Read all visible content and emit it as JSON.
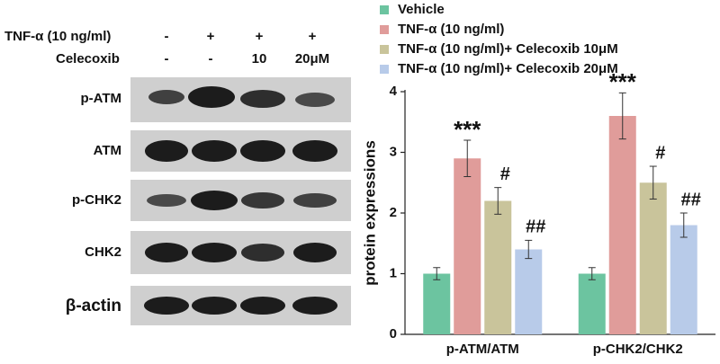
{
  "blot": {
    "treatments": [
      {
        "label": "TNF-α (10 ng/ml)",
        "lanes": [
          "-",
          "+",
          "+",
          "+"
        ]
      },
      {
        "label": "Celecoxib",
        "lanes": [
          "-",
          "-",
          "10",
          "20μM"
        ]
      }
    ],
    "rows": [
      "p-ATM",
      "ATM",
      "p-CHK2",
      "CHK2",
      "β-actin"
    ]
  },
  "chart_data": {
    "type": "bar",
    "y_label": "protein expressions",
    "categories": [
      "p-ATM/ATM",
      "p-CHK2/CHK2"
    ],
    "series": [
      {
        "name": "Vehicle",
        "color": "#6cc4a0",
        "values": [
          1,
          1
        ],
        "errors": [
          0.1,
          0.1
        ]
      },
      {
        "name": "TNF-α (10 ng/ml)",
        "color": "#e09c9a",
        "values": [
          2.9,
          3.6
        ],
        "errors": [
          0.3,
          0.38
        ],
        "annotations": [
          "***",
          "***"
        ]
      },
      {
        "name": "TNF-α (10 ng/ml)+ Celecoxib  10μM",
        "color": "#c9c49b",
        "values": [
          2.2,
          2.5
        ],
        "errors": [
          0.22,
          0.27
        ],
        "annotations": [
          "#",
          "#"
        ]
      },
      {
        "name": "TNF-α (10 ng/ml)+ Celecoxib  20μM",
        "color": "#b8cbe9",
        "values": [
          1.4,
          1.8
        ],
        "errors": [
          0.15,
          0.2
        ],
        "annotations": [
          "##",
          "##"
        ]
      }
    ],
    "ylim": [
      0,
      4
    ],
    "yticks": [
      0,
      1,
      2,
      3,
      4
    ],
    "grid": false
  }
}
